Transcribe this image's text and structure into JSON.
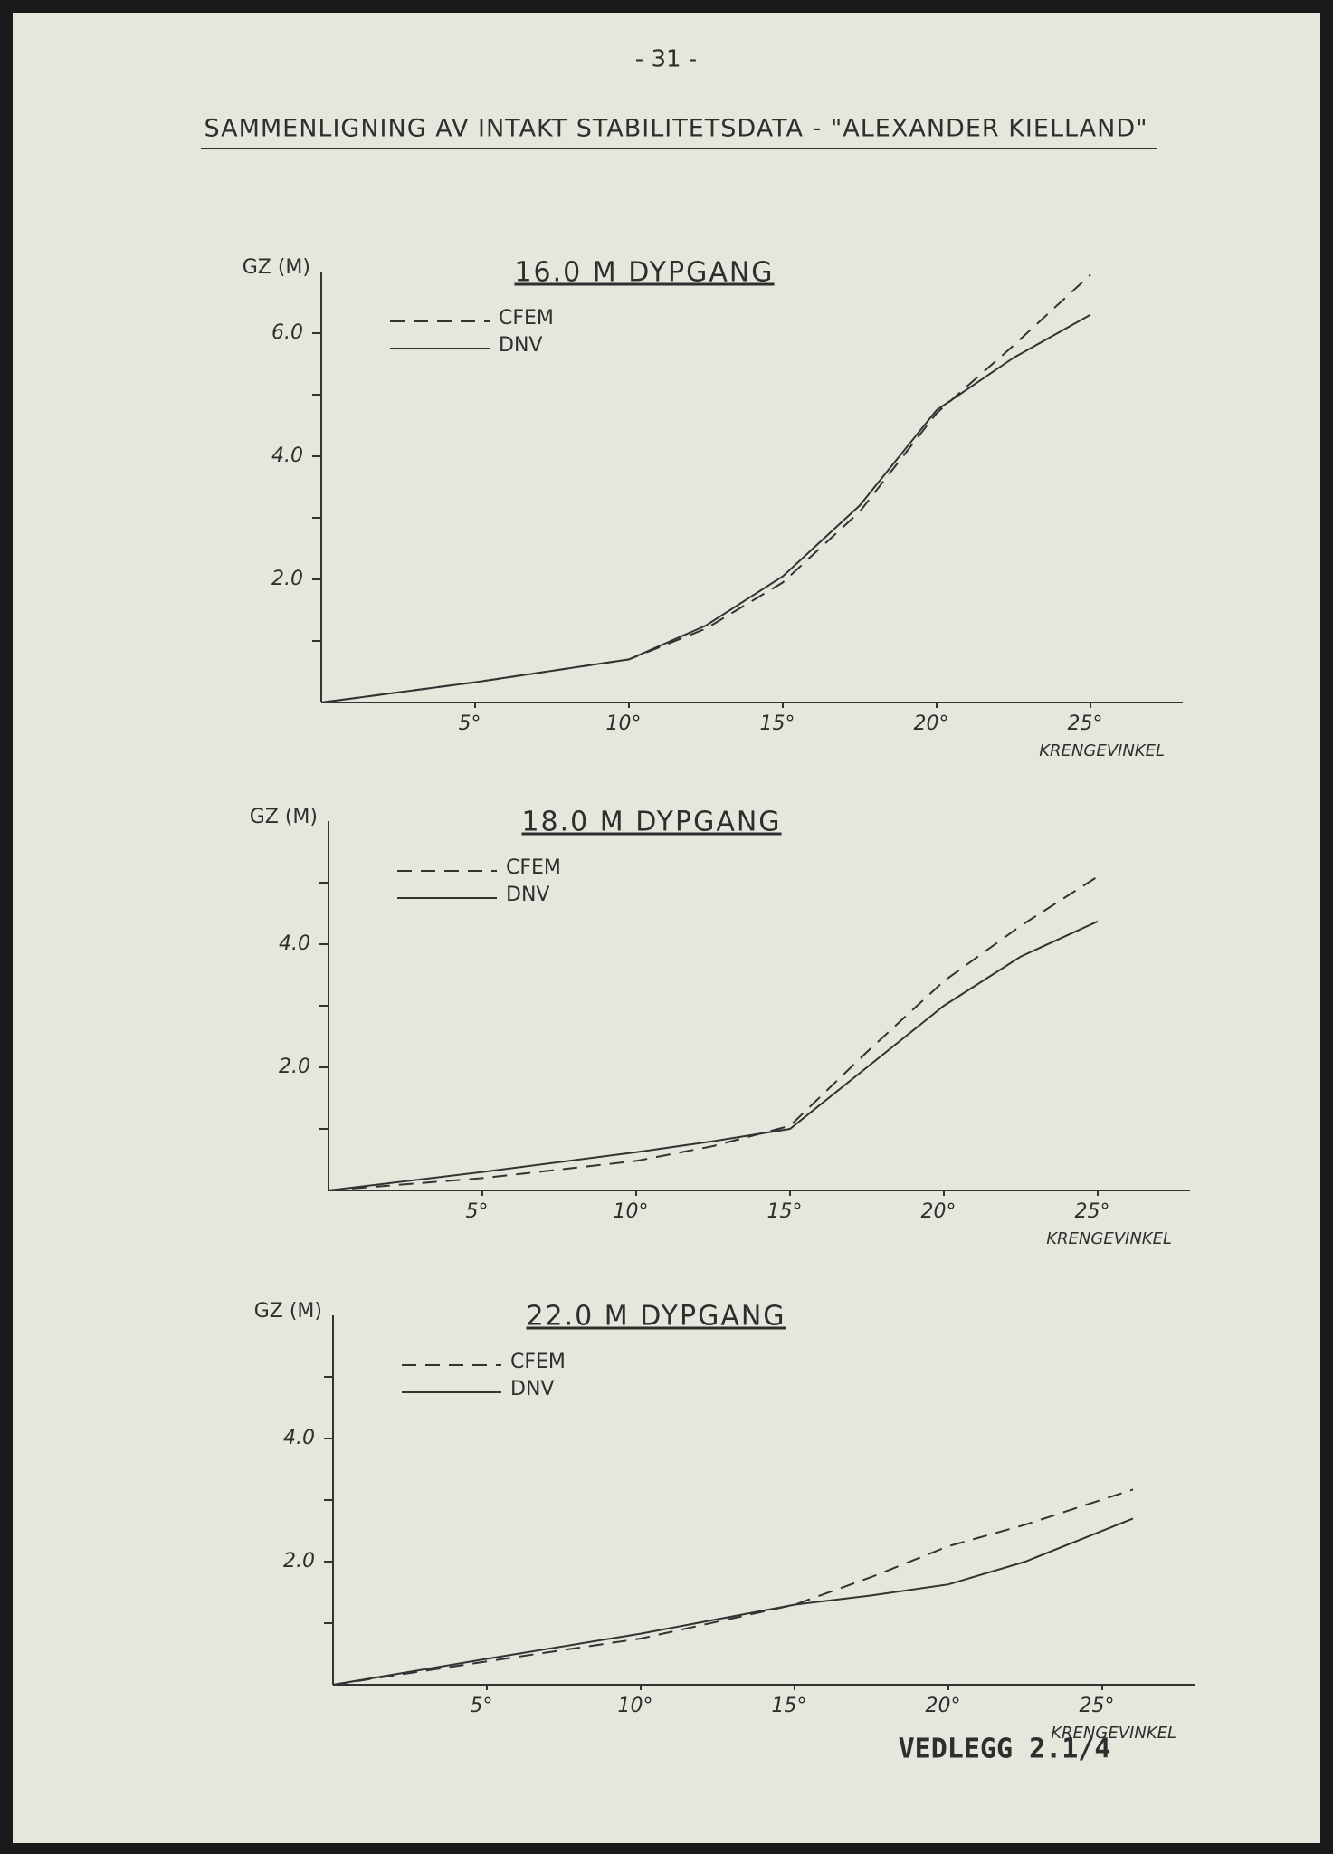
{
  "page_number": "- 31 -",
  "heading": "SAMMENLIGNING AV INTAKT STABILITETSDATA - \"ALEXANDER KIELLAND\"",
  "footer": "VEDLEGG 2.1/4",
  "chart_data": [
    {
      "type": "line",
      "title": "16.0 M DYPGANG",
      "y_label": "GZ (M)",
      "x_label": "KRENGEVINKEL",
      "x": [
        0,
        5,
        10,
        12.5,
        15,
        17.5,
        20,
        22.5,
        25
      ],
      "series": [
        {
          "name": "CFEM",
          "color": "#333333",
          "dashed": true,
          "values": [
            0,
            0.33,
            0.7,
            1.2,
            1.95,
            3.1,
            4.7,
            5.8,
            6.95
          ]
        },
        {
          "name": "DNV",
          "color": "#333333",
          "dashed": false,
          "values": [
            0,
            0.33,
            0.7,
            1.25,
            2.05,
            3.2,
            4.75,
            5.6,
            6.3
          ]
        }
      ],
      "xlim": [
        0,
        28
      ],
      "ylim": [
        0,
        7
      ],
      "xticks": [
        {
          "value": 5,
          "label": "5°"
        },
        {
          "value": 10,
          "label": "10°"
        },
        {
          "value": 15,
          "label": "15°"
        },
        {
          "value": 20,
          "label": "20°"
        },
        {
          "value": 25,
          "label": "25°"
        }
      ],
      "yticks": [
        {
          "value": 2,
          "label": "2.0"
        },
        {
          "value": 4,
          "label": "4.0"
        },
        {
          "value": 6,
          "label": "6.0"
        }
      ],
      "yminorticks": [
        1,
        3,
        5
      ]
    },
    {
      "type": "line",
      "title": "18.0 M DYPGANG",
      "y_label": "GZ (M)",
      "x_label": "KRENGEVINKEL",
      "x": [
        0,
        5,
        10,
        12.5,
        15,
        17.5,
        20,
        22.5,
        25
      ],
      "series": [
        {
          "name": "CFEM",
          "color": "#333333",
          "dashed": true,
          "values": [
            0,
            0.2,
            0.48,
            0.72,
            1.05,
            2.25,
            3.4,
            4.3,
            5.1
          ]
        },
        {
          "name": "DNV",
          "color": "#333333",
          "dashed": false,
          "values": [
            0,
            0.3,
            0.62,
            0.8,
            1.0,
            2.0,
            3.0,
            3.8,
            4.37
          ]
        }
      ],
      "xlim": [
        0,
        28
      ],
      "ylim": [
        0,
        6
      ],
      "xticks": [
        {
          "value": 5,
          "label": "5°"
        },
        {
          "value": 10,
          "label": "10°"
        },
        {
          "value": 15,
          "label": "15°"
        },
        {
          "value": 20,
          "label": "20°"
        },
        {
          "value": 25,
          "label": "25°"
        }
      ],
      "yticks": [
        {
          "value": 2,
          "label": "2.0"
        },
        {
          "value": 4,
          "label": "4.0"
        }
      ],
      "yminorticks": [
        1,
        3,
        5
      ]
    },
    {
      "type": "line",
      "title": "22.0 M DYPGANG",
      "y_label": "GZ (M)",
      "x_label": "KRENGEVINKEL",
      "x": [
        0,
        5,
        10,
        15,
        17.5,
        20,
        22.5,
        26
      ],
      "series": [
        {
          "name": "CFEM",
          "color": "#333333",
          "dashed": true,
          "values": [
            0,
            0.38,
            0.75,
            1.3,
            1.75,
            2.25,
            2.6,
            3.17
          ]
        },
        {
          "name": "DNV",
          "color": "#333333",
          "dashed": false,
          "values": [
            0,
            0.42,
            0.83,
            1.3,
            1.45,
            1.63,
            2.0,
            2.7
          ]
        }
      ],
      "xlim": [
        0,
        28
      ],
      "ylim": [
        0,
        6
      ],
      "xticks": [
        {
          "value": 5,
          "label": "5°"
        },
        {
          "value": 10,
          "label": "10°"
        },
        {
          "value": 15,
          "label": "15°"
        },
        {
          "value": 20,
          "label": "20°"
        },
        {
          "value": 25,
          "label": "25°"
        }
      ],
      "yticks": [
        {
          "value": 2,
          "label": "2.0"
        },
        {
          "value": 4,
          "label": "4.0"
        }
      ],
      "yminorticks": [
        1,
        3,
        5
      ]
    }
  ]
}
